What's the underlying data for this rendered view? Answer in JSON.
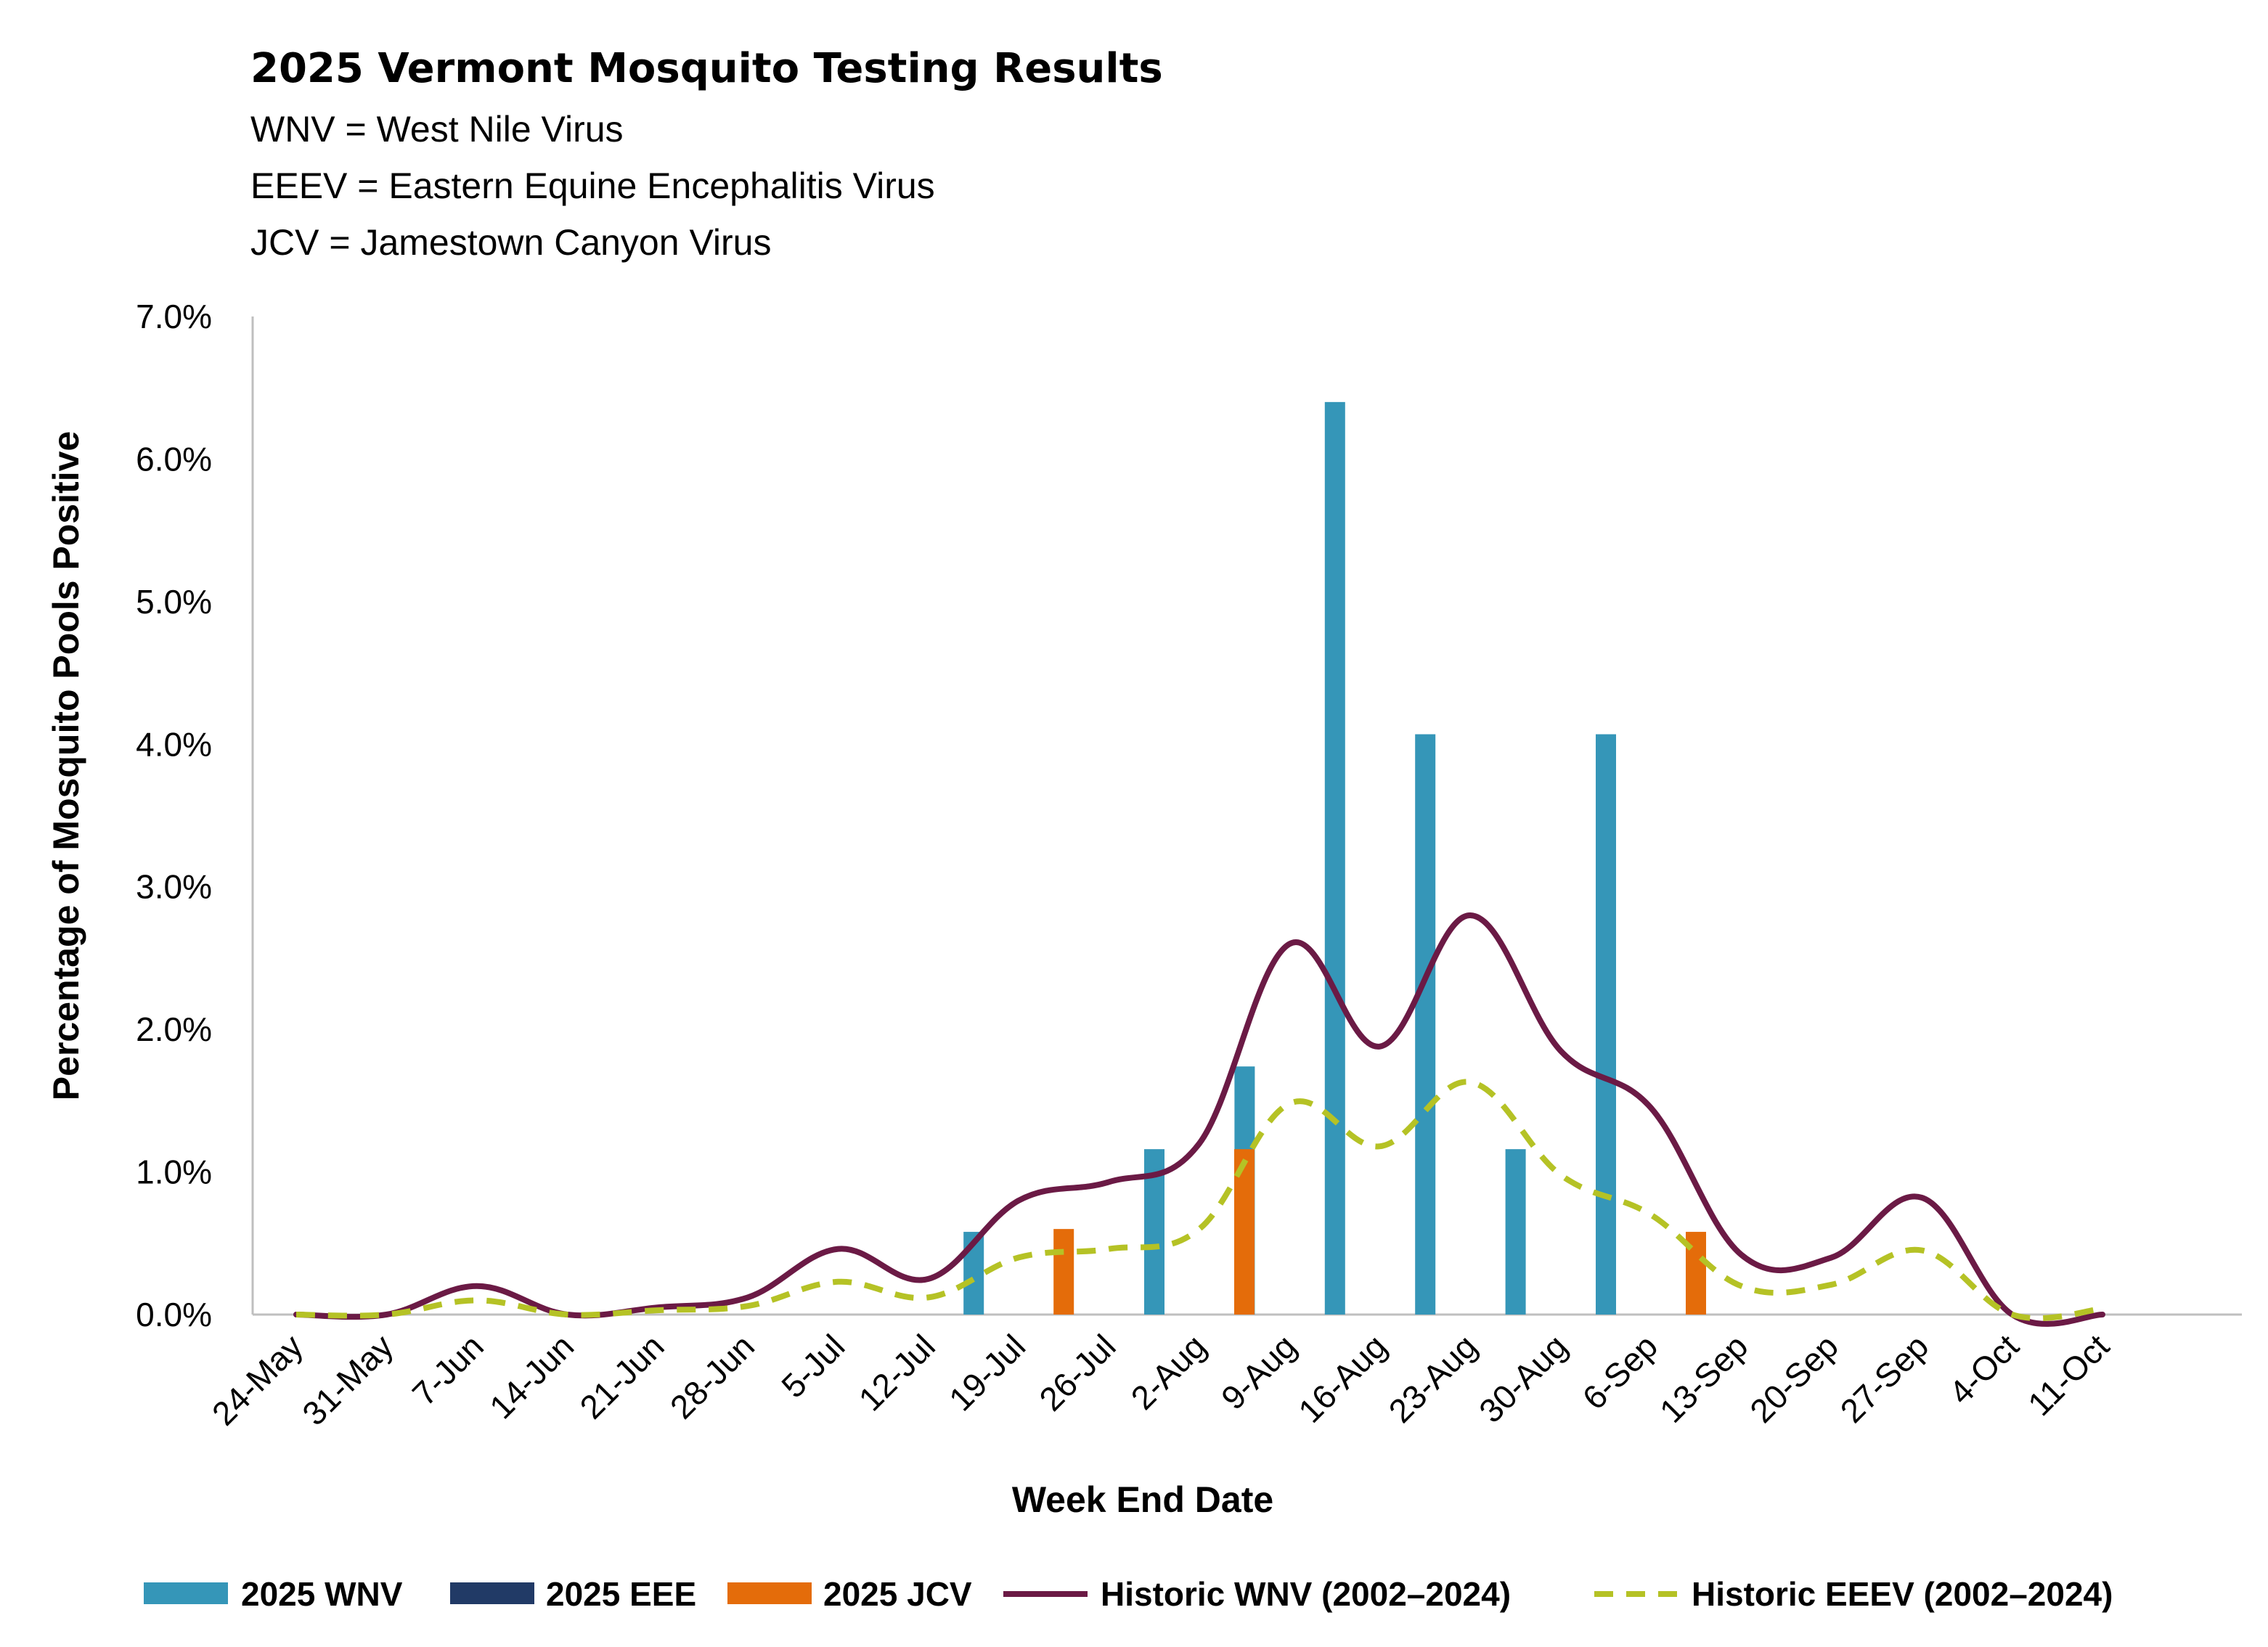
{
  "chart_data": {
    "type": "bar",
    "title": "2025 Vermont Mosquito Testing Results",
    "subtitle_lines": [
      "WNV = West Nile Virus",
      "EEEV = Eastern Equine Encephalitis Virus",
      "JCV = Jamestown Canyon Virus"
    ],
    "xlabel": "Week End Date",
    "ylabel": "Percentage of Mosquito Pools Positive",
    "ylim": [
      0,
      7.0
    ],
    "y_ticks": [
      "0.0%",
      "1.0%",
      "2.0%",
      "3.0%",
      "4.0%",
      "5.0%",
      "6.0%",
      "7.0%"
    ],
    "categories": [
      "24-May",
      "31-May",
      "7-Jun",
      "14-Jun",
      "21-Jun",
      "28-Jun",
      "5-Jul",
      "12-Jul",
      "19-Jul",
      "26-Jul",
      "2-Aug",
      "9-Aug",
      "16-Aug",
      "23-Aug",
      "30-Aug",
      "6-Sep",
      "13-Sep",
      "20-Sep",
      "27-Sep",
      "4-Oct",
      "11-Oct"
    ],
    "series": [
      {
        "name": "2025 WNV",
        "kind": "bar",
        "color": "#3596b8",
        "values": [
          0,
          0,
          0,
          0,
          0,
          0,
          0,
          0,
          0.58,
          0,
          1.16,
          1.74,
          6.4,
          4.07,
          1.16,
          4.07,
          0,
          0,
          0,
          0,
          0
        ]
      },
      {
        "name": "2025 EEE",
        "kind": "bar",
        "color": "#213a66",
        "values": [
          0,
          0,
          0,
          0,
          0,
          0,
          0,
          0,
          0,
          0,
          0,
          0,
          0,
          0,
          0,
          0,
          0,
          0,
          0,
          0,
          0
        ]
      },
      {
        "name": "2025 JCV",
        "kind": "bar",
        "color": "#e46c0a",
        "values": [
          0,
          0,
          0,
          0,
          0,
          0,
          0,
          0,
          0.6,
          0,
          1.16,
          0,
          0,
          0,
          0,
          0.58,
          0,
          0,
          0,
          0,
          0
        ]
      },
      {
        "name": "Historic WNV (2002–2024)",
        "kind": "line",
        "style": "solid",
        "color": "#6b1a45",
        "values": [
          0,
          0,
          0.2,
          0,
          0.05,
          0.12,
          0.46,
          0.25,
          0.8,
          0.93,
          1.2,
          2.6,
          1.88,
          2.8,
          1.85,
          1.45,
          0.42,
          0.4,
          0.82,
          0,
          0
        ]
      },
      {
        "name": "Historic EEEV (2002–2024)",
        "kind": "line",
        "style": "dashed",
        "color": "#b5c225",
        "values": [
          0,
          0,
          0.1,
          0,
          0.03,
          0.06,
          0.23,
          0.12,
          0.4,
          0.46,
          0.6,
          1.48,
          1.18,
          1.63,
          0.98,
          0.7,
          0.2,
          0.21,
          0.45,
          0,
          0.04
        ]
      }
    ],
    "legend_position": "bottom",
    "grid": false
  }
}
